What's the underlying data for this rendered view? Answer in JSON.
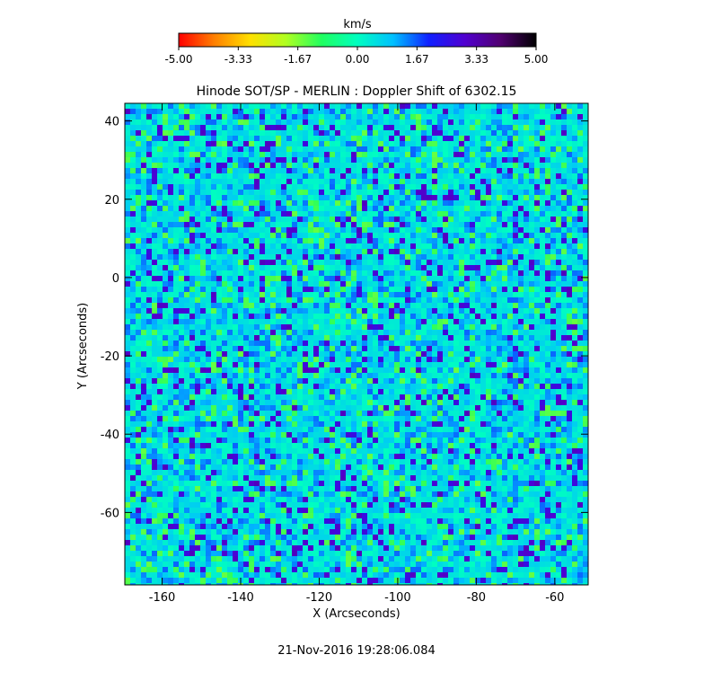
{
  "colorbar": {
    "title": "km/s",
    "ticks": [
      "-5.00",
      "-3.33",
      "-1.67",
      "0.00",
      "1.67",
      "3.33",
      "5.00"
    ],
    "range": [
      -5.0,
      5.0
    ],
    "colors": [
      "#ff0000",
      "#ff8000",
      "#ffe000",
      "#b0ff20",
      "#20ff60",
      "#00ffc0",
      "#00c0ff",
      "#1020ff",
      "#5000d0",
      "#500070",
      "#000000"
    ]
  },
  "footer": {
    "timestamp": "21-Nov-2016 19:28:06.084"
  },
  "chart_data": {
    "type": "heatmap",
    "title": "Hinode SOT/SP - MERLIN : Doppler Shift of 6302.15",
    "xlabel": "X (Arcseconds)",
    "ylabel": "Y (Arcseconds)",
    "xlim": [
      -169.5,
      -51.5
    ],
    "ylim": [
      -78.5,
      44.5
    ],
    "xticks": [
      -160,
      -140,
      -120,
      -100,
      -80,
      -60
    ],
    "yticks": [
      -60,
      -40,
      -20,
      0,
      20,
      40
    ],
    "value_range": [
      -5.0,
      5.0
    ],
    "value_unit": "km/s",
    "typical_values": {
      "background": 0.4,
      "min_common": -1.5,
      "max_common": 2.6
    }
  }
}
